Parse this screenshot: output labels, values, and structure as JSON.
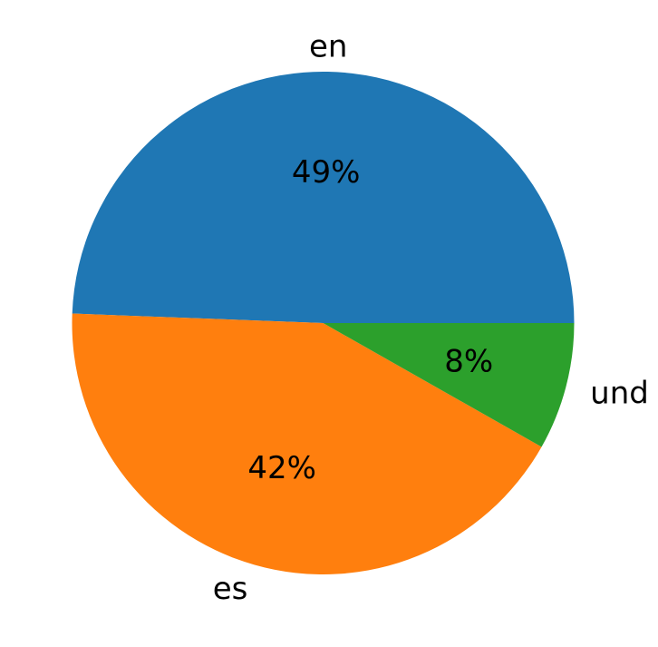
{
  "chart_data": {
    "type": "pie",
    "title": "",
    "start_angle": 0,
    "direction": "counterclockwise",
    "slices": [
      {
        "label": "en",
        "value": 49.4,
        "pct_text": "49%",
        "color": "#1f77b4"
      },
      {
        "label": "es",
        "value": 42.4,
        "pct_text": "42%",
        "color": "#ff7f0e"
      },
      {
        "label": "und",
        "value": 8.2,
        "pct_text": "8%",
        "color": "#2ca02c"
      }
    ]
  }
}
